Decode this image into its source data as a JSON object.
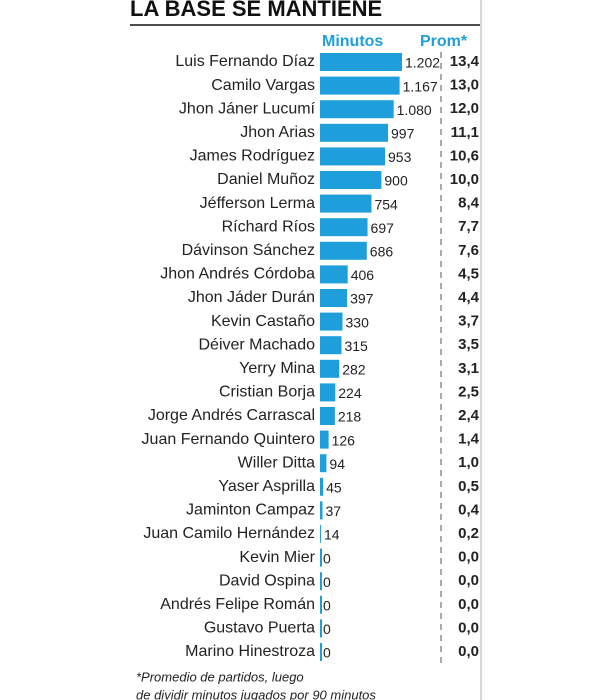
{
  "chart_data": {
    "type": "bar",
    "title": "LA BASE SE MANTIENE",
    "categories": [
      "Luis Fernando Díaz",
      "Camilo Vargas",
      "Jhon Jáner Lucumí",
      "Jhon Arias",
      "James Rodríguez",
      "Daniel Muñoz",
      "Jéfferson Lerma",
      "Ríchard Ríos",
      "Dávinson Sánchez",
      "Jhon Andrés Córdoba",
      "Jhon Jáder Durán",
      "Kevin Castaño",
      "Déiver Machado",
      "Yerry Mina",
      "Cristian Borja",
      "Jorge Andrés Carrascal",
      "Juan Fernando Quintero",
      "Willer Ditta",
      "Yaser Asprilla",
      "Jaminton Campaz",
      "Juan Camilo Hernández",
      "Kevin Mier",
      "David Ospina",
      "Andrés Felipe Román",
      "Gustavo Puerta",
      "Marino Hinestroza"
    ],
    "series": [
      {
        "name": "Minutos",
        "color": "#1e9fdb",
        "display": "bar",
        "values": [
          1202,
          1167,
          1080,
          997,
          953,
          900,
          754,
          697,
          686,
          406,
          397,
          330,
          315,
          282,
          224,
          218,
          126,
          94,
          45,
          37,
          14,
          0,
          0,
          0,
          0,
          0
        ],
        "value_labels": [
          "1.202",
          "1.167",
          "1.080",
          "997",
          "953",
          "900",
          "754",
          "697",
          "686",
          "406",
          "397",
          "330",
          "315",
          "282",
          "224",
          "218",
          "126",
          "94",
          "45",
          "37",
          "14",
          "0",
          "0",
          "0",
          "0",
          "0"
        ]
      },
      {
        "name": "Prom*",
        "color": "#222222",
        "display": "text",
        "values": [
          13.4,
          13.0,
          12.0,
          11.1,
          10.6,
          10.0,
          8.4,
          7.7,
          7.6,
          4.5,
          4.4,
          3.7,
          3.5,
          3.1,
          2.5,
          2.4,
          1.4,
          1.0,
          0.5,
          0.4,
          0.2,
          0.0,
          0.0,
          0.0,
          0.0,
          0.0
        ],
        "value_labels": [
          "13,4",
          "13,0",
          "12,0",
          "11,1",
          "10,6",
          "10,0",
          "8,4",
          "7,7",
          "7,6",
          "4,5",
          "4,4",
          "3,7",
          "3,5",
          "3,1",
          "2,5",
          "2,4",
          "1,4",
          "1,0",
          "0,5",
          "0,4",
          "0,2",
          "0,0",
          "0,0",
          "0,0",
          "0,0",
          "0,0"
        ]
      }
    ],
    "footnote": [
      "*Promedio de partidos, luego",
      "de dividir minutos jugados por 90 minutos"
    ]
  }
}
